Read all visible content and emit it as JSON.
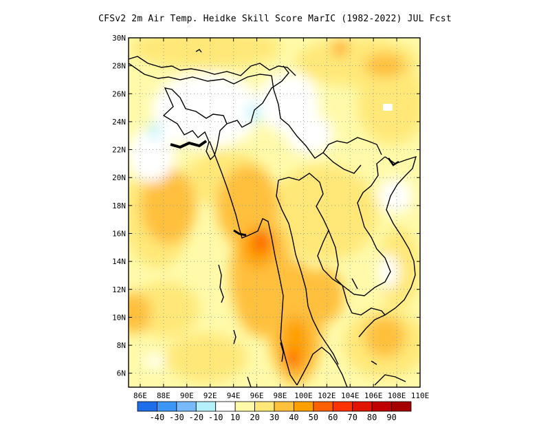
{
  "title": "CFSv2  2m Air Temp. Heidke Skill Score MarIC (1982-2022) JUL Fcst",
  "map": {
    "lat_labels": [
      "30N",
      "28N",
      "26N",
      "24N",
      "22N",
      "20N",
      "18N",
      "16N",
      "14N",
      "12N",
      "10N",
      "8N",
      "6N"
    ],
    "lon_labels": [
      "86E",
      "88E",
      "90E",
      "92E",
      "94E",
      "96E",
      "98E",
      "100E",
      "102E",
      "104E",
      "106E",
      "108E",
      "110E"
    ],
    "lon_range": [
      85,
      110
    ],
    "lat_range": [
      5,
      30
    ],
    "grid": true
  },
  "colorbar": {
    "labels": [
      "-40",
      "-30",
      "-20",
      "-10",
      "10",
      "20",
      "30",
      "40",
      "50",
      "60",
      "70",
      "80",
      "90"
    ],
    "colors": [
      "#1e6eeb",
      "#3c96f5",
      "#78b9fa",
      "#b4f0fa",
      "#ffffff",
      "#fffaaa",
      "#ffe878",
      "#ffc03c",
      "#ffa000",
      "#ff6000",
      "#ff3200",
      "#e11400",
      "#c00000",
      "#a50000"
    ]
  },
  "colors": {
    "background": "#ffffff",
    "border": "#000000",
    "grid": "#999999"
  }
}
